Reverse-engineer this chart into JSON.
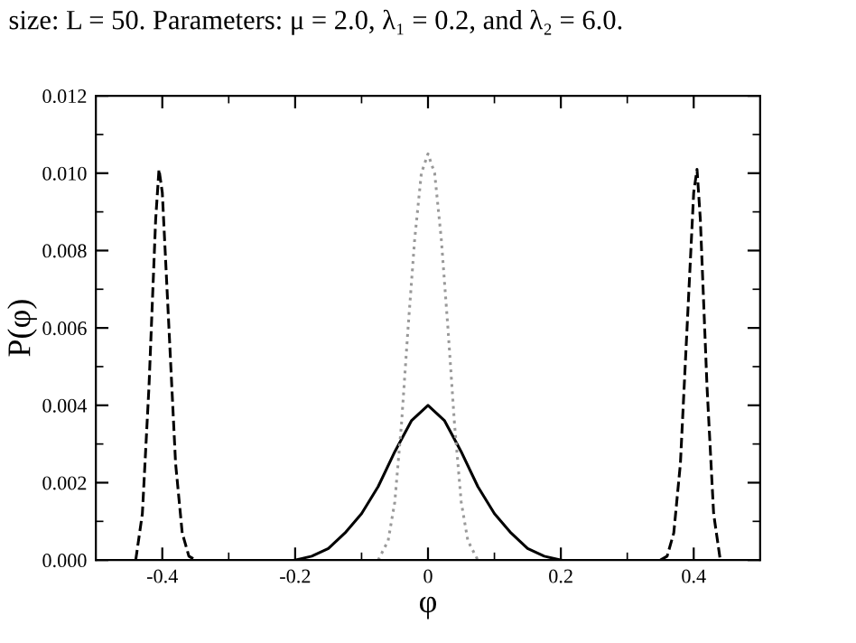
{
  "chart_data": {
    "type": "line",
    "xlabel": "φ",
    "ylabel": "P(φ)",
    "annotations": [
      "size: L = 50. Parameters: μ = 2.0, λ₁ = 0.2, and λ₂ = 6.0."
    ],
    "xlim": [
      -0.5,
      0.5
    ],
    "ylim": [
      0,
      0.012
    ],
    "xticks": [
      {
        "value": -0.5,
        "label": null
      },
      -0.4,
      {
        "value": -0.3,
        "label": null
      },
      -0.2,
      {
        "value": -0.1,
        "label": null
      },
      0,
      {
        "value": 0.1,
        "label": null
      },
      0.2,
      {
        "value": 0.3,
        "label": null
      },
      0.4,
      {
        "value": 0.5,
        "label": null
      }
    ],
    "yticks": [
      {
        "value": 0,
        "label": "0.000"
      },
      {
        "value": 0.001,
        "label": null
      },
      {
        "value": 0.002,
        "label": "0.002"
      },
      {
        "value": 0.003,
        "label": null
      },
      {
        "value": 0.004,
        "label": "0.004"
      },
      {
        "value": 0.005,
        "label": null
      },
      {
        "value": 0.006,
        "label": "0.006"
      },
      {
        "value": 0.007,
        "label": null
      },
      {
        "value": 0.008,
        "label": "0.008"
      },
      {
        "value": 0.009,
        "label": null
      },
      {
        "value": 0.01,
        "label": "0.010"
      },
      {
        "value": 0.011,
        "label": null
      },
      0.012
    ],
    "grid": false,
    "legend": false,
    "marker": "none",
    "series": [
      {
        "color": "#000000",
        "line_style": "solid",
        "x": [
          -0.2,
          -0.175,
          -0.15,
          -0.125,
          -0.1,
          -0.075,
          -0.05,
          -0.025,
          0,
          0.025,
          0.05,
          0.075,
          0.1,
          0.125,
          0.15,
          0.175,
          0.2
        ],
        "values": [
          0,
          0.0001,
          0.0003,
          0.0007,
          0.0012,
          0.0019,
          0.0028,
          0.0036,
          0.004,
          0.0036,
          0.0028,
          0.0019,
          0.0012,
          0.0007,
          0.0003,
          0.0001,
          0
        ]
      },
      {
        "color": "#999999",
        "line_style": "dotted",
        "x": [
          -0.075,
          -0.06,
          -0.05,
          -0.04,
          -0.03,
          -0.02,
          -0.01,
          0,
          0.01,
          0.02,
          0.03,
          0.04,
          0.05,
          0.06,
          0.075
        ],
        "values": [
          0,
          0.0005,
          0.0015,
          0.0035,
          0.006,
          0.0083,
          0.01,
          0.0105,
          0.01,
          0.0083,
          0.006,
          0.0035,
          0.0015,
          0.0005,
          0
        ]
      },
      {
        "color": "#000000",
        "line_style": "dashed",
        "x": [
          -0.44,
          -0.43,
          -0.42,
          -0.41,
          -0.405,
          -0.4,
          -0.39,
          -0.38,
          -0.37,
          -0.36,
          -0.35,
          0,
          0.35,
          0.36,
          0.37,
          0.38,
          0.39,
          0.4,
          0.405,
          0.41,
          0.42,
          0.43,
          0.44
        ],
        "values": [
          0,
          0.0012,
          0.0045,
          0.0088,
          0.0101,
          0.0095,
          0.006,
          0.0025,
          0.0007,
          0.0001,
          0,
          null,
          0,
          0.0001,
          0.0007,
          0.0025,
          0.006,
          0.0095,
          0.0101,
          0.0088,
          0.0045,
          0.0012,
          0
        ]
      }
    ]
  }
}
